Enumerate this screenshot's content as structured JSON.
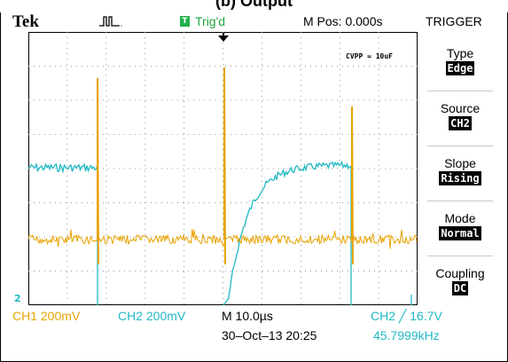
{
  "caption": "(b) Output",
  "brand": "Tek",
  "acq_icon": "acquisition-pulse-icon",
  "trigger": {
    "badge": "T",
    "status": "Trig'd"
  },
  "mpos": "M Pos: 0.000s",
  "menu": {
    "title": "TRIGGER",
    "items": [
      {
        "label": "Type",
        "value": "Edge"
      },
      {
        "label": "Source",
        "value": "CH2"
      },
      {
        "label": "Slope",
        "value": "Rising"
      },
      {
        "label": "Mode",
        "value": "Normal"
      },
      {
        "label": "Coupling",
        "value": "DC"
      }
    ]
  },
  "annotation": "CVPP = 10uF",
  "ch2_ground_marker": "2",
  "bottom": {
    "ch1": "CH1  200mV",
    "ch2": "CH2  200mV",
    "timebase": "M 10.0µs",
    "trigger_readout": "CH2 ╱ 16.7V",
    "datetime": "30–Oct–13 20:25",
    "frequency": "45.7999kHz"
  },
  "colors": {
    "ch1": "#e8a300",
    "ch2": "#20b8c4",
    "trigger": "#1fa540"
  }
}
